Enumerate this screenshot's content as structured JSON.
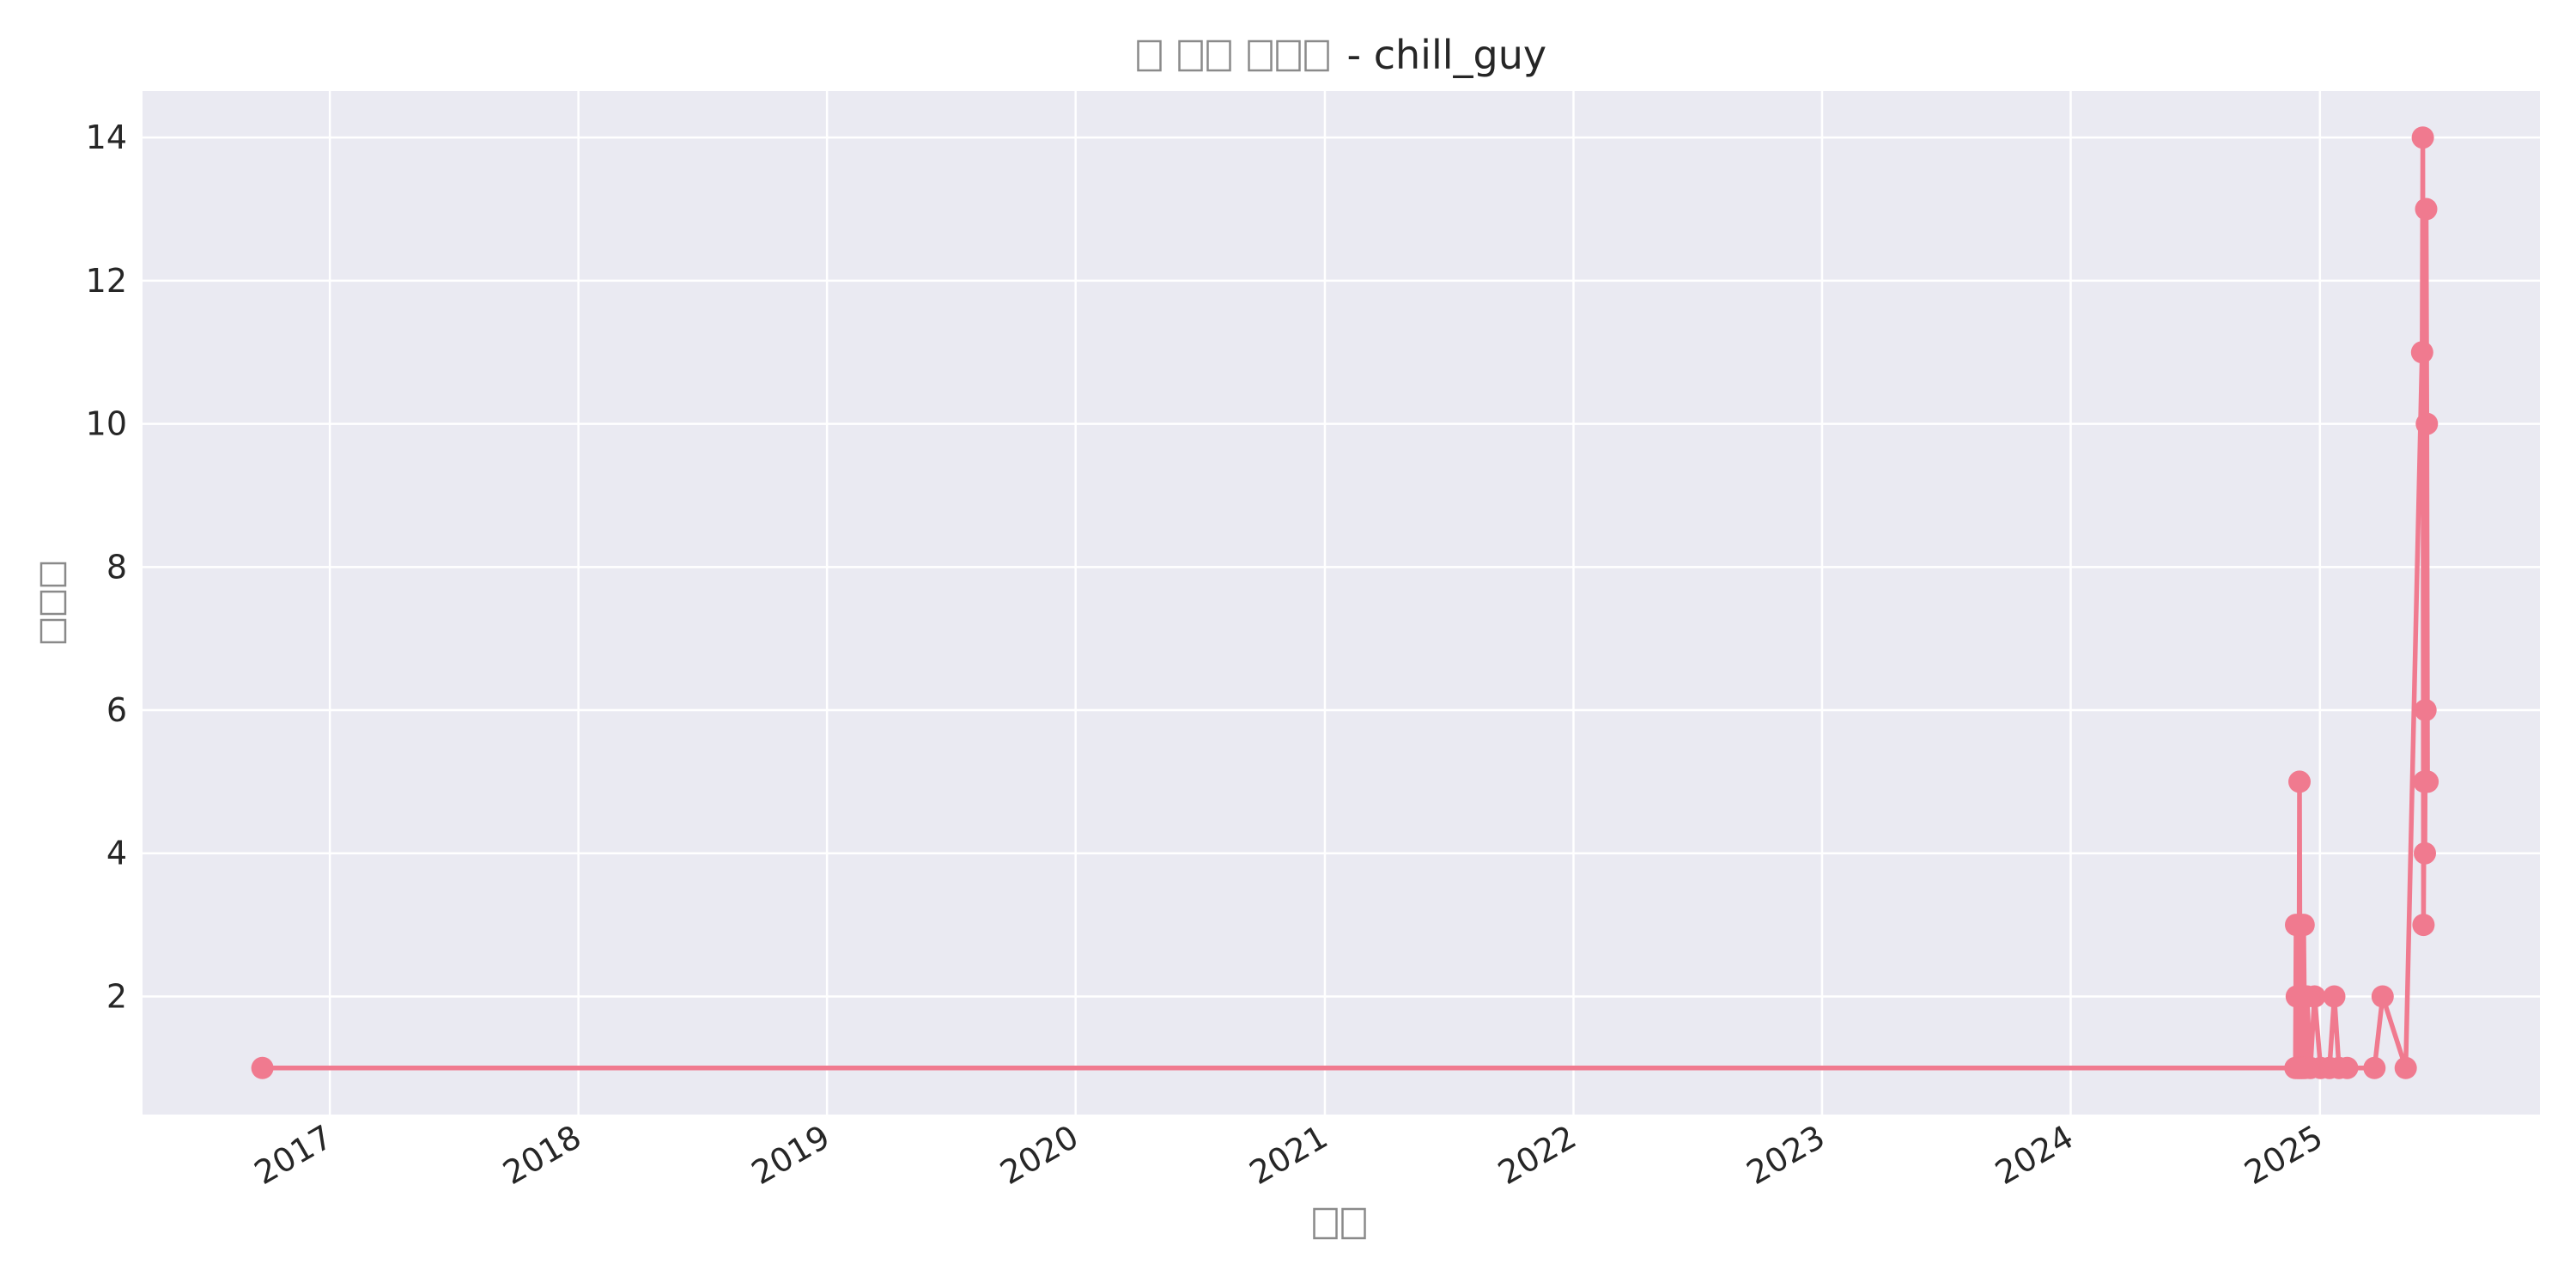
{
  "chart_data": {
    "type": "line",
    "title_glyph_words": [
      1,
      2,
      3
    ],
    "title_suffix": "- chill_guy",
    "xlabel_glyphs": 2,
    "ylabel_glyphs": 3,
    "x_ticks": [
      "2017",
      "2018",
      "2019",
      "2020",
      "2021",
      "2022",
      "2023",
      "2024",
      "2025"
    ],
    "x_tick_dates": [
      "2017-01-01",
      "2018-01-01",
      "2019-01-01",
      "2020-01-01",
      "2021-01-01",
      "2022-01-01",
      "2023-01-01",
      "2024-01-01",
      "2025-01-01"
    ],
    "y_ticks": [
      2,
      4,
      6,
      8,
      10,
      12,
      14
    ],
    "xlim": [
      "2016-04-01",
      "2025-11-20"
    ],
    "ylim": [
      0.35,
      14.65
    ],
    "grid": true,
    "colors": {
      "line": "#f07a8f",
      "marker": "#f07a8f",
      "plot_bg": "#eaeaf2",
      "grid": "#ffffff",
      "text": "#262626",
      "placeholder": "#8a8a8a"
    },
    "series": [
      {
        "points": [
          [
            "2016-09-24",
            1
          ],
          [
            "2024-11-26",
            1
          ],
          [
            "2024-11-27",
            3
          ],
          [
            "2024-11-28",
            2
          ],
          [
            "2024-11-29",
            1
          ],
          [
            "2024-11-30",
            2
          ],
          [
            "2024-12-01",
            1
          ],
          [
            "2024-12-02",
            5
          ],
          [
            "2024-12-03",
            1
          ],
          [
            "2024-12-04",
            3
          ],
          [
            "2024-12-05",
            1
          ],
          [
            "2024-12-06",
            2
          ],
          [
            "2024-12-07",
            1
          ],
          [
            "2024-12-08",
            3
          ],
          [
            "2024-12-10",
            1
          ],
          [
            "2024-12-13",
            2
          ],
          [
            "2024-12-18",
            1
          ],
          [
            "2024-12-24",
            2
          ],
          [
            "2025-01-02",
            1
          ],
          [
            "2025-01-15",
            1
          ],
          [
            "2025-01-22",
            2
          ],
          [
            "2025-01-29",
            1
          ],
          [
            "2025-02-10",
            1
          ],
          [
            "2025-03-22",
            1
          ],
          [
            "2025-04-03",
            2
          ],
          [
            "2025-05-07",
            1
          ],
          [
            "2025-05-31",
            11
          ],
          [
            "2025-06-01",
            14
          ],
          [
            "2025-06-02",
            3
          ],
          [
            "2025-06-03",
            5
          ],
          [
            "2025-06-04",
            4
          ],
          [
            "2025-06-05",
            6
          ],
          [
            "2025-06-06",
            13
          ],
          [
            "2025-06-07",
            10
          ],
          [
            "2025-06-08",
            5
          ]
        ]
      }
    ]
  }
}
